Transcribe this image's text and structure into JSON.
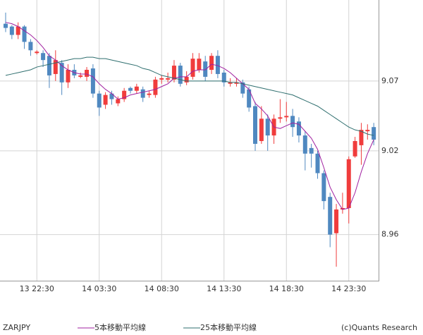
{
  "chart_data": {
    "type": "candlestick",
    "symbol": "ZARJPY",
    "credit": "(c)Quants Research",
    "categories": [
      null,
      null,
      null,
      null,
      null,
      "13 22:30",
      null,
      null,
      null,
      null,
      null,
      null,
      null,
      null,
      null,
      "14 03:30",
      null,
      null,
      null,
      null,
      null,
      null,
      null,
      null,
      null,
      "14 08:30",
      null,
      null,
      null,
      null,
      null,
      null,
      null,
      null,
      null,
      "14 13:30",
      null,
      null,
      null,
      null,
      null,
      null,
      null,
      null,
      null,
      "14 18:30",
      null,
      null,
      null,
      null,
      null,
      null,
      null,
      null,
      null,
      "14 23:30",
      null,
      null,
      null,
      null
    ],
    "ohlc": {
      "open": [
        9.111,
        9.109,
        9.103,
        9.109,
        9.098,
        9.09,
        9.09,
        9.088,
        9.075,
        9.083,
        9.069,
        9.078,
        9.073,
        9.073,
        9.079,
        9.061,
        9.053,
        9.061,
        9.054,
        9.057,
        9.065,
        9.063,
        9.064,
        9.06,
        9.06,
        9.071,
        9.071,
        9.071,
        9.081,
        9.069,
        9.073,
        9.078,
        9.084,
        9.078,
        9.088,
        9.076,
        9.068,
        9.068,
        9.069,
        9.064,
        9.052,
        9.027,
        9.043,
        9.031,
        9.043,
        9.044,
        9.045,
        9.041,
        9.031,
        9.022,
        9.018,
        9.004,
        8.987,
        8.961,
        8.978,
        8.979,
        9.016,
        9.024,
        9.034,
        9.037
      ],
      "high": [
        9.119,
        9.11,
        9.112,
        9.11,
        9.1,
        9.092,
        9.092,
        9.09,
        9.092,
        9.085,
        9.082,
        9.082,
        9.076,
        9.08,
        9.082,
        9.063,
        9.062,
        9.063,
        9.059,
        9.065,
        9.066,
        9.068,
        9.066,
        9.063,
        9.073,
        9.074,
        9.076,
        9.085,
        9.083,
        9.077,
        9.09,
        9.09,
        9.088,
        9.09,
        9.092,
        9.078,
        9.072,
        9.072,
        9.071,
        9.066,
        9.055,
        9.052,
        9.046,
        9.046,
        9.057,
        9.055,
        9.05,
        9.044,
        9.034,
        9.025,
        9.02,
        9.006,
        8.99,
        8.982,
        8.99,
        9.016,
        9.03,
        9.04,
        9.039,
        9.04
      ],
      "low": [
        9.105,
        9.1,
        9.1,
        9.093,
        9.088,
        9.089,
        9.08,
        9.065,
        9.07,
        9.06,
        9.065,
        9.072,
        9.072,
        9.07,
        9.058,
        9.045,
        9.05,
        9.053,
        9.052,
        9.055,
        9.061,
        9.061,
        9.055,
        9.058,
        9.058,
        9.068,
        9.069,
        9.069,
        9.066,
        9.067,
        9.071,
        9.076,
        9.07,
        9.075,
        9.072,
        9.066,
        9.066,
        9.066,
        9.058,
        9.048,
        9.02,
        9.025,
        9.02,
        9.025,
        9.04,
        9.041,
        9.03,
        9.026,
        9.006,
        9.008,
        9.0,
        8.978,
        8.951,
        8.937,
        8.975,
        8.968,
        9.015,
        9.01,
        9.028,
        9.024
      ],
      "close": [
        9.108,
        9.103,
        9.109,
        9.098,
        9.092,
        9.091,
        9.085,
        9.074,
        9.085,
        9.069,
        9.078,
        9.074,
        9.074,
        9.078,
        9.061,
        9.051,
        9.06,
        9.057,
        9.057,
        9.063,
        9.063,
        9.066,
        9.058,
        9.061,
        9.071,
        9.072,
        9.072,
        9.081,
        9.068,
        9.073,
        9.086,
        9.086,
        9.073,
        9.088,
        9.075,
        9.069,
        9.069,
        9.069,
        9.061,
        9.051,
        9.025,
        9.043,
        9.031,
        9.043,
        9.044,
        9.045,
        9.037,
        9.031,
        9.018,
        9.018,
        9.004,
        8.984,
        8.96,
        8.978,
        8.979,
        9.014,
        9.027,
        9.035,
        9.035,
        9.028
      ]
    },
    "up_color": "#f03c3c",
    "down_color": "#4f88c0",
    "series": [
      {
        "name": "5本移動平均線",
        "color": "#a020a0",
        "values": [
          9.112,
          9.111,
          9.109,
          9.106,
          9.103,
          9.099,
          9.094,
          9.088,
          9.085,
          9.081,
          9.078,
          9.076,
          9.075,
          9.075,
          9.073,
          9.068,
          9.064,
          9.061,
          9.057,
          9.058,
          9.06,
          9.061,
          9.062,
          9.063,
          9.064,
          9.066,
          9.068,
          9.072,
          9.073,
          9.073,
          9.077,
          9.078,
          9.078,
          9.082,
          9.081,
          9.079,
          9.076,
          9.072,
          9.068,
          9.064,
          9.054,
          9.05,
          9.045,
          9.037,
          9.036,
          9.038,
          9.04,
          9.039,
          9.034,
          9.029,
          9.021,
          9.008,
          8.994,
          8.985,
          8.978,
          8.979,
          8.99,
          9.005,
          9.018,
          9.028
        ]
      },
      {
        "name": "25本移動平均線",
        "color": "#2f6f6f",
        "values": [
          9.074,
          9.075,
          9.076,
          9.077,
          9.078,
          9.08,
          9.081,
          9.082,
          9.083,
          9.084,
          9.085,
          9.086,
          9.086,
          9.087,
          9.087,
          9.086,
          9.086,
          9.085,
          9.084,
          9.083,
          9.082,
          9.081,
          9.079,
          9.078,
          9.076,
          9.074,
          9.073,
          9.072,
          9.071,
          9.07,
          9.07,
          9.07,
          9.07,
          9.07,
          9.07,
          9.07,
          9.069,
          9.069,
          9.068,
          9.067,
          9.066,
          9.065,
          9.064,
          9.063,
          9.062,
          9.061,
          9.06,
          9.058,
          9.056,
          9.054,
          9.052,
          9.049,
          9.046,
          9.043,
          9.04,
          9.037,
          9.035,
          9.034,
          9.032,
          9.031
        ]
      }
    ],
    "ylim": [
      8.927,
      9.128
    ],
    "yticks": [
      9.07,
      9.02,
      8.96
    ],
    "grid": true
  }
}
